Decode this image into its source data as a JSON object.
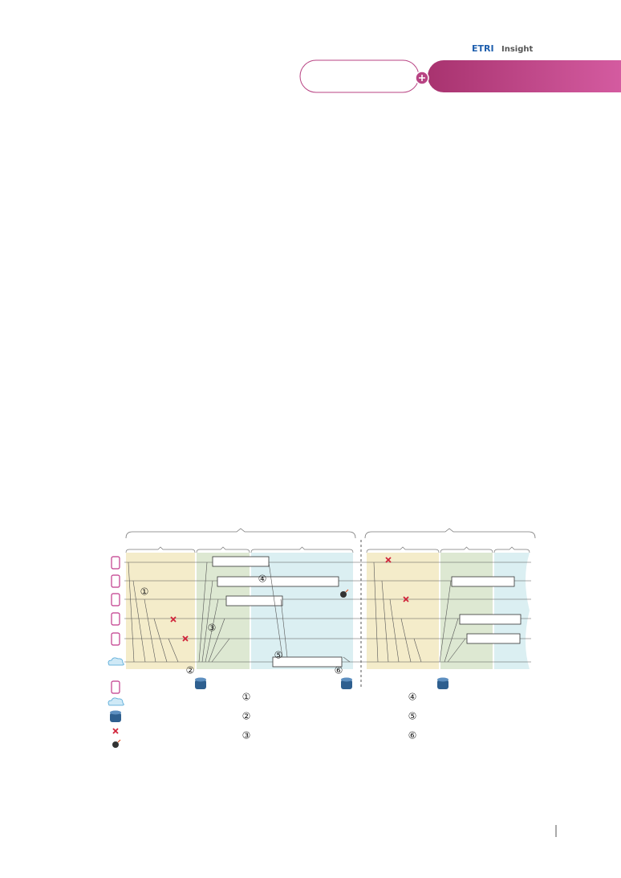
{
  "header": {
    "logo_brand": "ETRI",
    "logo_word": "Insight"
  },
  "diagram": {
    "markers": [
      "①",
      "②",
      "③",
      "④",
      "⑤",
      "⑥"
    ]
  }
}
